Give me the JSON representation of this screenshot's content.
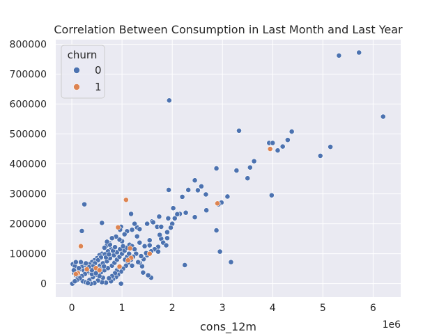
{
  "chart_data": {
    "type": "scatter",
    "title": "Correlation Between Consumption in Last Month and Last Year",
    "xlabel": "cons_12m",
    "ylabel": "",
    "x_offset_text": "1e6",
    "xlim": [
      -0.32,
      6.55
    ],
    "ylim": [
      -45000,
      815000
    ],
    "x_ticks": [
      0,
      1,
      2,
      3,
      4,
      5,
      6
    ],
    "x_tick_labels": [
      "0",
      "1",
      "2",
      "3",
      "4",
      "5",
      "6"
    ],
    "y_ticks": [
      0,
      100000,
      200000,
      300000,
      400000,
      500000,
      600000,
      700000,
      800000
    ],
    "y_tick_labels": [
      "0",
      "100000",
      "200000",
      "300000",
      "400000",
      "500000",
      "600000",
      "700000",
      "800000"
    ],
    "grid": true,
    "legend": {
      "title": "churn",
      "position": "top-left",
      "entries": [
        "0",
        "1"
      ]
    },
    "colors": {
      "churn_0": "#4c72b0",
      "churn_1": "#dd8452",
      "background": "#eaeaf2",
      "grid": "#ffffff"
    },
    "series": [
      {
        "name": "0",
        "color": "#4c72b0",
        "points": [
          [
            1.94,
            612000
          ],
          [
            5.32,
            762000
          ],
          [
            5.72,
            772000
          ],
          [
            6.2,
            558000
          ],
          [
            3.33,
            511000
          ],
          [
            4.38,
            508000
          ],
          [
            3.93,
            470000
          ],
          [
            4.0,
            470000
          ],
          [
            4.3,
            480000
          ],
          [
            4.2,
            458000
          ],
          [
            4.1,
            445000
          ],
          [
            5.15,
            457000
          ],
          [
            4.95,
            427000
          ],
          [
            3.63,
            409000
          ],
          [
            3.55,
            388000
          ],
          [
            3.28,
            378000
          ],
          [
            3.5,
            352000
          ],
          [
            2.88,
            385000
          ],
          [
            2.45,
            345000
          ],
          [
            2.58,
            325000
          ],
          [
            2.51,
            312000
          ],
          [
            2.32,
            313000
          ],
          [
            2.67,
            298000
          ],
          [
            3.1,
            291000
          ],
          [
            2.98,
            271000
          ],
          [
            2.92,
            265000
          ],
          [
            2.68,
            245000
          ],
          [
            2.2,
            290000
          ],
          [
            3.98,
            295000
          ],
          [
            1.93,
            313000
          ],
          [
            2.02,
            252000
          ],
          [
            2.15,
            233000
          ],
          [
            2.1,
            232000
          ],
          [
            2.27,
            237000
          ],
          [
            2.45,
            222000
          ],
          [
            2.05,
            218000
          ],
          [
            1.92,
            218000
          ],
          [
            2.0,
            200000
          ],
          [
            1.97,
            187000
          ],
          [
            1.9,
            172000
          ],
          [
            1.9,
            152000
          ],
          [
            1.78,
            150000
          ],
          [
            1.75,
            163000
          ],
          [
            1.82,
            137000
          ],
          [
            1.88,
            128000
          ],
          [
            1.72,
            123000
          ],
          [
            1.65,
            115000
          ],
          [
            1.58,
            108000
          ],
          [
            1.72,
            107000
          ],
          [
            0.25,
            265000
          ],
          [
            0.2,
            176000
          ],
          [
            0.6,
            203000
          ],
          [
            0.98,
            190000
          ],
          [
            0.96,
            180000
          ],
          [
            1.18,
            233000
          ],
          [
            1.3,
            188000
          ],
          [
            1.25,
            200000
          ],
          [
            1.35,
            182000
          ],
          [
            1.5,
            200000
          ],
          [
            1.6,
            208000
          ],
          [
            1.62,
            205000
          ],
          [
            1.7,
            190000
          ],
          [
            1.78,
            190000
          ],
          [
            1.74,
            224000
          ],
          [
            2.88,
            178000
          ],
          [
            2.95,
            107000
          ],
          [
            3.17,
            72000
          ],
          [
            2.25,
            62000
          ],
          [
            1.58,
            20000
          ],
          [
            1.52,
            28000
          ],
          [
            1.42,
            37000
          ],
          [
            1.4,
            58000
          ],
          [
            1.35,
            70000
          ],
          [
            1.43,
            82000
          ],
          [
            1.5,
            95000
          ],
          [
            1.55,
            128000
          ],
          [
            1.55,
            145000
          ],
          [
            1.45,
            125000
          ],
          [
            1.35,
            137000
          ],
          [
            1.3,
            158000
          ],
          [
            1.2,
            180000
          ],
          [
            1.1,
            175000
          ],
          [
            1.05,
            165000
          ],
          [
            1.0,
            142000
          ],
          [
            0.95,
            147000
          ],
          [
            0.88,
            157000
          ],
          [
            0.8,
            152000
          ],
          [
            0.75,
            135000
          ],
          [
            0.7,
            128000
          ],
          [
            0.65,
            120000
          ],
          [
            0.6,
            100000
          ],
          [
            0.55,
            95000
          ],
          [
            0.5,
            85000
          ],
          [
            0.45,
            78000
          ],
          [
            0.4,
            72000
          ],
          [
            0.35,
            65000
          ],
          [
            0.3,
            58000
          ],
          [
            0.25,
            62000
          ],
          [
            0.2,
            55000
          ],
          [
            0.15,
            48000
          ],
          [
            0.1,
            42000
          ],
          [
            0.05,
            35000
          ],
          [
            0.08,
            28000
          ],
          [
            0.12,
            20000
          ],
          [
            0.18,
            15000
          ],
          [
            0.22,
            8000
          ],
          [
            0.28,
            5000
          ],
          [
            0.35,
            12000
          ],
          [
            0.42,
            22000
          ],
          [
            0.5,
            30000
          ],
          [
            0.58,
            38000
          ],
          [
            0.65,
            45000
          ],
          [
            0.72,
            52000
          ],
          [
            0.8,
            60000
          ],
          [
            0.85,
            70000
          ],
          [
            0.9,
            80000
          ],
          [
            0.95,
            90000
          ],
          [
            1.0,
            100000
          ],
          [
            1.05,
            110000
          ],
          [
            1.1,
            120000
          ],
          [
            1.15,
            130000
          ],
          [
            1.2,
            125000
          ],
          [
            1.25,
            115000
          ],
          [
            1.28,
            100000
          ],
          [
            1.22,
            90000
          ],
          [
            1.18,
            80000
          ],
          [
            1.12,
            70000
          ],
          [
            1.08,
            60000
          ],
          [
            1.02,
            50000
          ],
          [
            0.98,
            40000
          ],
          [
            0.92,
            30000
          ],
          [
            0.88,
            22000
          ],
          [
            0.82,
            15000
          ],
          [
            0.78,
            8000
          ],
          [
            0.68,
            3000
          ],
          [
            0.6,
            5000
          ],
          [
            0.52,
            10000
          ],
          [
            0.45,
            2000
          ],
          [
            0.38,
            0
          ],
          [
            0.32,
            2000
          ],
          [
            0.01,
            0
          ],
          [
            0.02,
            65000
          ],
          [
            0.06,
            58000
          ],
          [
            0.14,
            52000
          ],
          [
            0.24,
            44000
          ],
          [
            0.32,
            38000
          ],
          [
            0.4,
            32000
          ],
          [
            0.48,
            50000
          ],
          [
            0.56,
            60000
          ],
          [
            0.62,
            68000
          ],
          [
            0.7,
            75000
          ],
          [
            0.76,
            85000
          ],
          [
            0.84,
            95000
          ],
          [
            0.9,
            105000
          ],
          [
            0.96,
            115000
          ],
          [
            1.02,
            125000
          ],
          [
            0.78,
            115000
          ],
          [
            0.72,
            108000
          ],
          [
            0.66,
            98000
          ],
          [
            0.58,
            88000
          ],
          [
            0.52,
            78000
          ],
          [
            0.46,
            68000
          ],
          [
            0.42,
            58000
          ],
          [
            0.36,
            48000
          ],
          [
            0.3,
            40000
          ],
          [
            0.26,
            32000
          ],
          [
            0.2,
            25000
          ],
          [
            0.16,
            18000
          ],
          [
            0.1,
            12000
          ],
          [
            0.06,
            8000
          ],
          [
            0.68,
            88000
          ],
          [
            0.74,
            98000
          ],
          [
            0.82,
            110000
          ],
          [
            0.86,
            122000
          ],
          [
            0.76,
            130000
          ],
          [
            0.7,
            140000
          ],
          [
            0.98,
            0
          ],
          [
            1.2,
            60000
          ],
          [
            1.32,
            72000
          ],
          [
            1.38,
            92000
          ],
          [
            1.48,
            102000
          ],
          [
            0.62,
            20000
          ],
          [
            0.55,
            25000
          ],
          [
            0.48,
            35000
          ],
          [
            0.4,
            45000
          ],
          [
            0.34,
            55000
          ],
          [
            0.28,
            68000
          ],
          [
            0.18,
            72000
          ],
          [
            0.08,
            72000
          ],
          [
            0.04,
            45000
          ],
          [
            0.9,
            45000
          ],
          [
            0.94,
            55000
          ],
          [
            0.86,
            35000
          ],
          [
            0.8,
            25000
          ],
          [
            0.74,
            18000
          ],
          [
            1.1,
            90000
          ],
          [
            1.06,
            80000
          ],
          [
            1.14,
            100000
          ],
          [
            0.64,
            58000
          ],
          [
            0.56,
            48000
          ]
        ]
      },
      {
        "name": "1",
        "color": "#dd8452",
        "points": [
          [
            1.08,
            280000
          ],
          [
            3.95,
            450000
          ],
          [
            2.9,
            268000
          ],
          [
            0.92,
            188000
          ],
          [
            0.18,
            125000
          ],
          [
            1.16,
            118000
          ],
          [
            1.18,
            86000
          ],
          [
            1.55,
            100000
          ],
          [
            0.95,
            57000
          ],
          [
            0.48,
            52000
          ],
          [
            0.12,
            35000
          ],
          [
            0.08,
            32000
          ],
          [
            0.3,
            48000
          ],
          [
            0.55,
            45000
          ],
          [
            1.12,
            78000
          ]
        ]
      }
    ]
  }
}
